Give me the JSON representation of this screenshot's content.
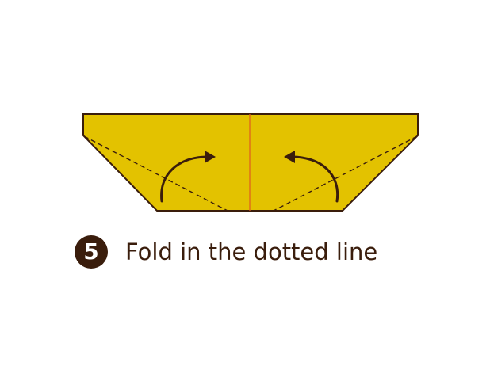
{
  "step": {
    "number": "5",
    "instruction": "Fold in the dotted line"
  },
  "colors": {
    "paper": "#e3c200",
    "outline": "#3a1d0c",
    "center_crease": "#e05a1e",
    "fold_line": "#3a1d0c",
    "badge": "#3a1d0c"
  }
}
